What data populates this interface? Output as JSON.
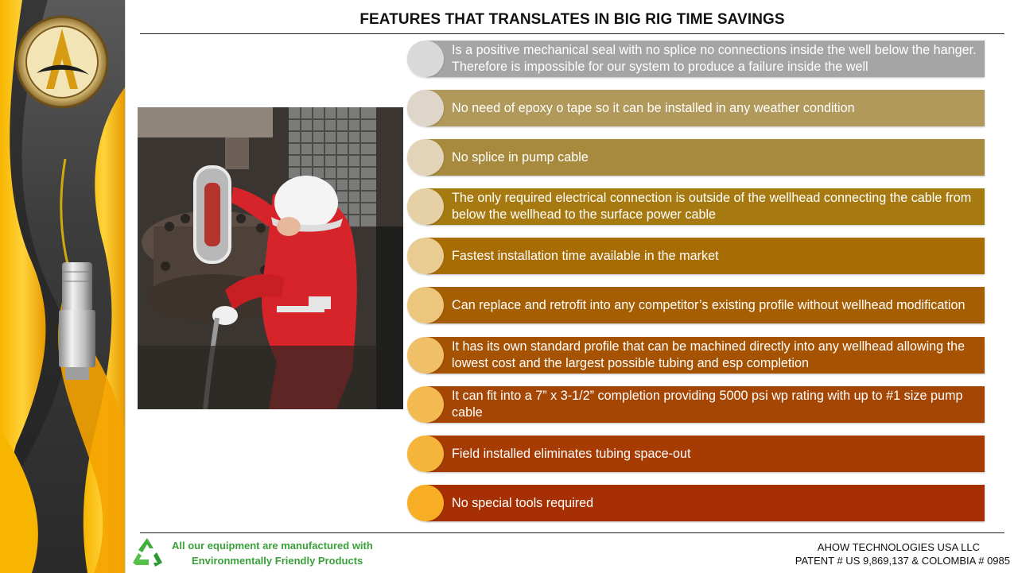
{
  "title": "FEATURES THAT TRANSLATES IN BIG RIG TIME SAVINGS",
  "features": [
    {
      "text": "Is a positive mechanical seal with no splice no connections inside the well below the hanger. Therefore is impossible for our system to produce a failure inside the well",
      "bar_color": "#a5a5a5",
      "circle_color": "#d9d9d9"
    },
    {
      "text": "No need of epoxy o tape so it can be installed in any weather condition",
      "bar_color": "#b1995b",
      "circle_color": "#ddd6c9"
    },
    {
      "text": "No splice in pump cable",
      "bar_color": "#a88a3e",
      "circle_color": "#e2d4b8"
    },
    {
      "text": "The only required electrical connection is outside of the wellhead connecting the cable from below the wellhead to the surface power cable",
      "bar_color": "#a67a11",
      "circle_color": "#e6d1a6"
    },
    {
      "text": "Fastest installation time available in the market",
      "bar_color": "#a86c04",
      "circle_color": "#e9cc92"
    },
    {
      "text": "Can replace and retrofit into any competitor’s existing profile without wellhead modification",
      "bar_color": "#a65e03",
      "circle_color": "#ecc67d"
    },
    {
      "text": "It has its own standard profile that can be machined directly into any wellhead allowing the lowest cost and the largest possible tubing and esp completion",
      "bar_color": "#a65203",
      "circle_color": "#efc067"
    },
    {
      "text": "It can fit into a 7” x 3-1/2” completion providing 5000 psi wp rating with up to #1 size pump cable",
      "bar_color": "#a64604",
      "circle_color": "#f2ba50"
    },
    {
      "text": "Field installed eliminates tubing space-out",
      "bar_color": "#a63b04",
      "circle_color": "#f5b43a"
    },
    {
      "text": "No special tools required",
      "bar_color": "#a63003",
      "circle_color": "#f8ae24"
    }
  ],
  "footer": {
    "eco_line1": "All our equipment are manufactured with",
    "eco_line2": "Environmentally Friendly Products",
    "company": "AHOW TECHNOLOGIES  USA LLC",
    "patent": "PATENT # US 9,869,137 & COLOMBIA # 0985"
  }
}
